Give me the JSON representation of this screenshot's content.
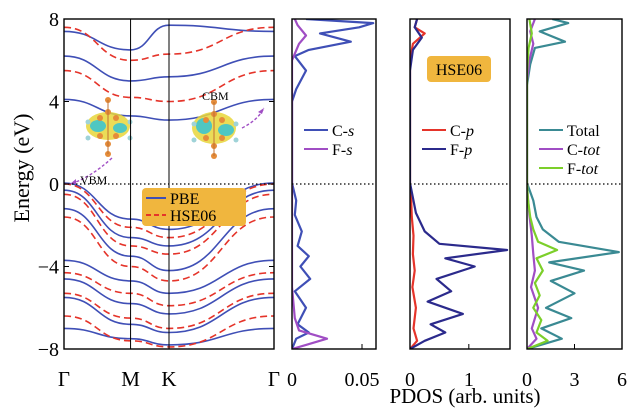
{
  "axes": {
    "ylabel": "Energy (eV)",
    "xlabel": "PDOS (arb. units)"
  },
  "chart_data": [
    {
      "type": "line",
      "panel": "band-structure",
      "ylabel": "Energy (eV)",
      "ylim": [
        -8,
        8
      ],
      "yticks": [
        "-8",
        "-4",
        "0",
        "4",
        "8"
      ],
      "kpoints": [
        "Γ",
        "M",
        "K",
        "Γ"
      ],
      "kpoint_positions": [
        0,
        0.317,
        0.5,
        1.0
      ],
      "fermi_level": 0,
      "legend": {
        "position": "center-right",
        "entries": [
          "PBE",
          "HSE06"
        ]
      },
      "annotations": [
        "VBM",
        "CBM"
      ],
      "series": [
        {
          "name": "PBE",
          "color": "#3f4fb6",
          "style": "solid",
          "bands": [
            [
              [
                0,
                0.05
              ],
              [
                0.317,
                -1.7
              ],
              [
                0.5,
                -2.2
              ],
              [
                1.0,
                0.05
              ]
            ],
            [
              [
                0,
                -0.3
              ],
              [
                0.317,
                -2.6
              ],
              [
                0.5,
                -3.0
              ],
              [
                1.0,
                -0.3
              ]
            ],
            [
              [
                0,
                -1.2
              ],
              [
                0.317,
                -3.5
              ],
              [
                0.5,
                -4.2
              ],
              [
                1.0,
                -1.2
              ]
            ],
            [
              [
                0,
                -3.7
              ],
              [
                0.317,
                -4.7
              ],
              [
                0.5,
                -5.3
              ],
              [
                1.0,
                -3.7
              ]
            ],
            [
              [
                0,
                -4.6
              ],
              [
                0.317,
                -5.8
              ],
              [
                0.5,
                -6.3
              ],
              [
                1.0,
                -4.6
              ]
            ],
            [
              [
                0,
                -5.5
              ],
              [
                0.317,
                -6.8
              ],
              [
                0.5,
                -7.2
              ],
              [
                1.0,
                -5.5
              ]
            ],
            [
              [
                0,
                -7.0
              ],
              [
                0.317,
                -7.5
              ],
              [
                0.5,
                -7.8
              ],
              [
                1.0,
                -7.0
              ]
            ],
            [
              [
                0,
                4.1
              ],
              [
                0.317,
                3.3
              ],
              [
                0.5,
                3.1
              ],
              [
                1.0,
                4.1
              ]
            ],
            [
              [
                0,
                6.2
              ],
              [
                0.317,
                5.0
              ],
              [
                0.5,
                5.2
              ],
              [
                1.0,
                6.2
              ]
            ],
            [
              [
                0,
                7.4
              ],
              [
                0.317,
                6.5
              ],
              [
                0.5,
                7.7
              ],
              [
                1.0,
                7.4
              ]
            ]
          ]
        },
        {
          "name": "HSE06",
          "color": "#e5342a",
          "style": "dashed",
          "bands": [
            [
              [
                0,
                0.0
              ],
              [
                0.317,
                -2.1
              ],
              [
                0.5,
                -2.6
              ],
              [
                1.0,
                0.0
              ]
            ],
            [
              [
                0,
                -0.5
              ],
              [
                0.317,
                -3.0
              ],
              [
                0.5,
                -3.4
              ],
              [
                1.0,
                -0.5
              ]
            ],
            [
              [
                0,
                -1.6
              ],
              [
                0.317,
                -4.0
              ],
              [
                0.5,
                -4.7
              ],
              [
                1.0,
                -1.6
              ]
            ],
            [
              [
                0,
                -4.3
              ],
              [
                0.317,
                -5.3
              ],
              [
                0.5,
                -5.9
              ],
              [
                1.0,
                -4.3
              ]
            ],
            [
              [
                0,
                -5.3
              ],
              [
                0.317,
                -6.5
              ],
              [
                0.5,
                -7.0
              ],
              [
                1.0,
                -5.3
              ]
            ],
            [
              [
                0,
                -6.4
              ],
              [
                0.317,
                -7.6
              ],
              [
                0.5,
                -7.9
              ],
              [
                1.0,
                -6.4
              ]
            ],
            [
              [
                0,
                5.5
              ],
              [
                0.317,
                4.2
              ],
              [
                0.5,
                4.0
              ],
              [
                1.0,
                5.5
              ]
            ],
            [
              [
                0,
                7.6
              ],
              [
                0.317,
                6.0
              ],
              [
                0.5,
                6.3
              ],
              [
                1.0,
                7.6
              ]
            ]
          ]
        }
      ]
    },
    {
      "type": "line",
      "panel": "pdos-s",
      "xlim": [
        0,
        0.06
      ],
      "xticks": [
        "0",
        "0.05"
      ],
      "ylim": [
        -8,
        8
      ],
      "legend": {
        "position": "center-right",
        "entries": [
          "C-s",
          "F-s"
        ]
      },
      "series": [
        {
          "name": "C-s",
          "color": "#3f4fb6",
          "points": [
            [
              0,
              -8
            ],
            [
              0.003,
              -7.5
            ],
            [
              0.012,
              -7.2
            ],
            [
              0.004,
              -6.8
            ],
            [
              0.01,
              -6.0
            ],
            [
              0.002,
              -5.2
            ],
            [
              0.013,
              -4.6
            ],
            [
              0.006,
              -4.0
            ],
            [
              0.012,
              -3.5
            ],
            [
              0.004,
              -3.0
            ],
            [
              0.007,
              -2.3
            ],
            [
              0.002,
              -1.5
            ],
            [
              0.003,
              -0.8
            ],
            [
              0,
              0.05
            ],
            [
              0,
              4.0
            ],
            [
              0.003,
              4.6
            ],
            [
              0.01,
              5.5
            ],
            [
              0.002,
              6.2
            ],
            [
              0.012,
              6.5
            ],
            [
              0.042,
              6.9
            ],
            [
              0.02,
              7.3
            ],
            [
              0.048,
              7.6
            ],
            [
              0.058,
              7.8
            ],
            [
              0.01,
              8
            ]
          ]
        },
        {
          "name": "F-s",
          "color": "#a04ec4",
          "points": [
            [
              0,
              -8
            ],
            [
              0.01,
              -7.8
            ],
            [
              0.025,
              -7.5
            ],
            [
              0.005,
              -7.1
            ],
            [
              0.002,
              -6.5
            ],
            [
              0,
              -5.0
            ],
            [
              0,
              6.0
            ],
            [
              0.005,
              6.8
            ],
            [
              0.01,
              7.2
            ],
            [
              0.004,
              7.7
            ],
            [
              0.002,
              8
            ]
          ]
        }
      ]
    },
    {
      "type": "line",
      "panel": "pdos-p",
      "xlim": [
        0,
        1.7
      ],
      "xticks": [
        "0",
        "1"
      ],
      "ylim": [
        -8,
        8
      ],
      "legend": {
        "position": "center-right",
        "entries": [
          "C-p",
          "F-p"
        ]
      },
      "annotations": [
        "HSE06"
      ],
      "series": [
        {
          "name": "C-p",
          "color": "#e5342a",
          "points": [
            [
              0,
              -8
            ],
            [
              0.12,
              -7.6
            ],
            [
              0.06,
              -7.0
            ],
            [
              0.1,
              -6.0
            ],
            [
              0.04,
              -5.0
            ],
            [
              0.08,
              -4.2
            ],
            [
              0.05,
              -3.4
            ],
            [
              0.06,
              -2.5
            ],
            [
              0.03,
              -1.6
            ],
            [
              0.02,
              -0.8
            ],
            [
              0,
              0.05
            ],
            [
              0,
              6.0
            ],
            [
              0.05,
              6.8
            ],
            [
              0.25,
              7.3
            ],
            [
              0.08,
              7.6
            ],
            [
              0.12,
              8
            ]
          ]
        },
        {
          "name": "F-p",
          "color": "#2b2a8c",
          "points": [
            [
              0,
              -8
            ],
            [
              0.25,
              -7.6
            ],
            [
              0.6,
              -7.2
            ],
            [
              0.35,
              -6.8
            ],
            [
              0.9,
              -6.3
            ],
            [
              0.3,
              -5.7
            ],
            [
              0.7,
              -5.2
            ],
            [
              0.45,
              -4.6
            ],
            [
              1.1,
              -4.0
            ],
            [
              0.6,
              -3.6
            ],
            [
              1.65,
              -3.2
            ],
            [
              0.5,
              -2.9
            ],
            [
              0.25,
              -2.3
            ],
            [
              0.1,
              -1.4
            ],
            [
              0,
              0.05
            ],
            [
              0,
              5.5
            ],
            [
              0.05,
              6.5
            ],
            [
              0.2,
              7.1
            ],
            [
              0.08,
              7.6
            ],
            [
              0.12,
              8
            ]
          ]
        }
      ]
    },
    {
      "type": "line",
      "panel": "pdos-total",
      "xlim": [
        0,
        6
      ],
      "xticks": [
        "0",
        "3",
        "6"
      ],
      "ylim": [
        -8,
        8
      ],
      "legend": {
        "position": "center-right",
        "entries": [
          "Total",
          "C-tot",
          "F-tot"
        ]
      },
      "series": [
        {
          "name": "Total",
          "color": "#3a8a93",
          "points": [
            [
              0,
              -8
            ],
            [
              2.2,
              -7.5
            ],
            [
              0.9,
              -7.0
            ],
            [
              2.8,
              -6.5
            ],
            [
              1.2,
              -6.0
            ],
            [
              3.0,
              -5.3
            ],
            [
              1.5,
              -4.7
            ],
            [
              3.6,
              -4.2
            ],
            [
              1.4,
              -3.8
            ],
            [
              5.8,
              -3.3
            ],
            [
              2.0,
              -2.8
            ],
            [
              1.0,
              -2.2
            ],
            [
              0.6,
              -1.6
            ],
            [
              0.4,
              -0.8
            ],
            [
              0,
              0.05
            ],
            [
              0,
              4.8
            ],
            [
              0.2,
              5.8
            ],
            [
              0.5,
              6.6
            ],
            [
              2.4,
              6.9
            ],
            [
              0.8,
              7.4
            ],
            [
              2.6,
              7.8
            ],
            [
              1.6,
              8
            ]
          ]
        },
        {
          "name": "C-tot",
          "color": "#a04ec4",
          "points": [
            [
              0,
              -8
            ],
            [
              0.6,
              -7.5
            ],
            [
              0.3,
              -7.0
            ],
            [
              0.7,
              -6.0
            ],
            [
              0.25,
              -5.0
            ],
            [
              0.5,
              -4.2
            ],
            [
              0.4,
              -3.4
            ],
            [
              0.3,
              -2.5
            ],
            [
              0.15,
              -1.5
            ],
            [
              0.05,
              -0.6
            ],
            [
              0,
              0.05
            ],
            [
              0,
              5.0
            ],
            [
              0.15,
              6.0
            ],
            [
              0.4,
              6.8
            ],
            [
              0.2,
              7.4
            ],
            [
              0.5,
              8
            ]
          ]
        },
        {
          "name": "F-tot",
          "color": "#7ccf2a",
          "points": [
            [
              0,
              -8
            ],
            [
              1.3,
              -7.6
            ],
            [
              0.6,
              -7.2
            ],
            [
              0.9,
              -6.6
            ],
            [
              0.4,
              -6.0
            ],
            [
              0.8,
              -5.4
            ],
            [
              0.5,
              -4.8
            ],
            [
              1.0,
              -4.2
            ],
            [
              0.6,
              -3.6
            ],
            [
              1.9,
              -3.2
            ],
            [
              0.7,
              -2.8
            ],
            [
              0.4,
              -2.2
            ],
            [
              0.2,
              -1.6
            ],
            [
              0.05,
              -0.7
            ],
            [
              0,
              0.05
            ],
            [
              0,
              5.5
            ],
            [
              0.1,
              6.6
            ],
            [
              0.3,
              7.3
            ],
            [
              0.15,
              8
            ]
          ]
        }
      ]
    }
  ]
}
